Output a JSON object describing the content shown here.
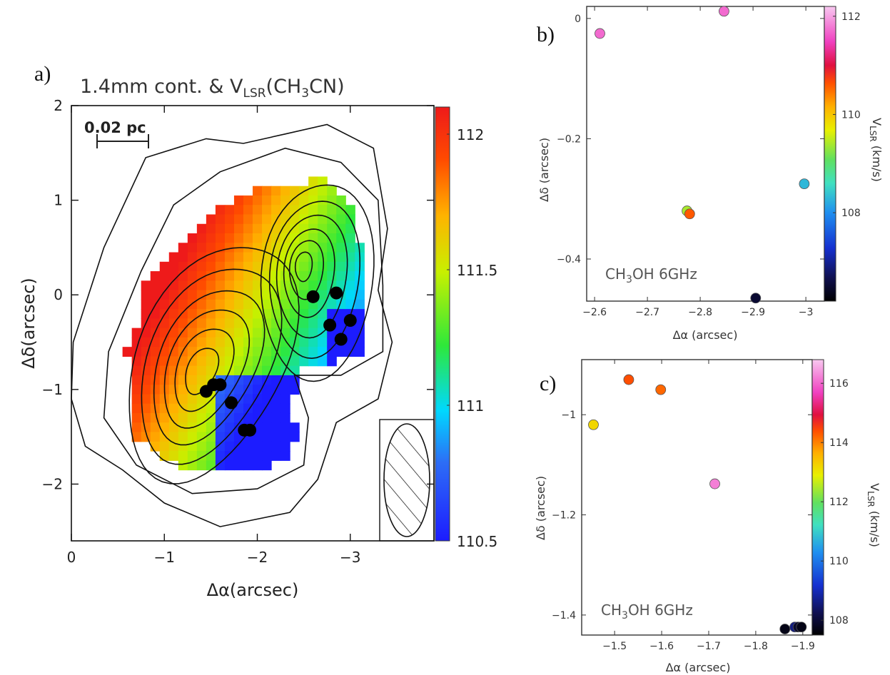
{
  "figure": {
    "panel_labels": [
      "a)",
      "b)",
      "c)"
    ]
  },
  "chart_data": [
    {
      "panel": "a)",
      "type": "heatmap",
      "title_parts": [
        "1.4mm cont. & V",
        "LSR",
        "(CH",
        "3",
        "CN)"
      ],
      "xlabel": "Δα(arcsec)",
      "ylabel": "Δδ(arcsec)",
      "xlim": [
        0,
        -3.9
      ],
      "ylim": [
        -2.6,
        2
      ],
      "xticks": [
        0,
        -1,
        -2,
        -3
      ],
      "xtick_labels": [
        "0",
        "−1",
        "−2",
        "−3"
      ],
      "yticks": [
        2,
        1,
        0,
        -1,
        -2
      ],
      "ytick_labels": [
        "2",
        "1",
        "0",
        "−1",
        "−2"
      ],
      "colorbar": {
        "range": [
          110.5,
          112.1
        ],
        "ticks": [
          112,
          111.5,
          111,
          110.5
        ],
        "tick_labels": [
          "112",
          "111.5",
          "111",
          "110.5"
        ]
      },
      "scale_bar": "0.02 pc",
      "contour_peaks": [
        {
          "x": -1.4,
          "y": -0.8
        },
        {
          "x": -2.5,
          "y": 0.3
        }
      ],
      "points": [
        {
          "x": -2.6,
          "y": -0.02
        },
        {
          "x": -2.85,
          "y": 0.02
        },
        {
          "x": -2.78,
          "y": -0.32
        },
        {
          "x": -3.0,
          "y": -0.27
        },
        {
          "x": -2.9,
          "y": -0.47
        },
        {
          "x": -1.45,
          "y": -1.02
        },
        {
          "x": -1.53,
          "y": -0.95
        },
        {
          "x": -1.6,
          "y": -0.95
        },
        {
          "x": -1.72,
          "y": -1.14
        },
        {
          "x": -1.86,
          "y": -1.43
        },
        {
          "x": -1.92,
          "y": -1.43
        }
      ]
    },
    {
      "panel": "b)",
      "type": "scatter",
      "annotation": "CH3OH 6GHz",
      "xlabel": "Δα (arcsec)",
      "ylabel": "Δδ (arcsec)",
      "xlim": [
        -2.585,
        -3.035
      ],
      "ylim": [
        -0.47,
        0.02
      ],
      "xticks": [
        -2.6,
        -2.7,
        -2.8,
        -2.9,
        -3
      ],
      "xtick_labels": [
        "−2.6",
        "−2.7",
        "−2.8",
        "−2.9",
        "−3"
      ],
      "yticks": [
        0,
        -0.2,
        -0.4
      ],
      "ytick_labels": [
        "0",
        "−0.2",
        "−0.4"
      ],
      "colorbar": {
        "label": "V_LSR (km/s)",
        "range": [
          106.2,
          112.2
        ],
        "ticks": [
          112,
          110,
          108
        ],
        "tick_labels": [
          "112",
          "110",
          "108"
        ]
      },
      "points": [
        {
          "x": -2.61,
          "y": -0.025,
          "v": 111.7
        },
        {
          "x": -2.845,
          "y": 0.012,
          "v": 111.7
        },
        {
          "x": -2.775,
          "y": -0.32,
          "v": 109.4
        },
        {
          "x": -2.78,
          "y": -0.325,
          "v": 110.6
        },
        {
          "x": -2.997,
          "y": -0.275,
          "v": 108.3
        },
        {
          "x": -2.905,
          "y": -0.465,
          "v": 106.5
        }
      ]
    },
    {
      "panel": "c)",
      "type": "scatter",
      "annotation": "CH3OH 6GHz",
      "xlabel": "Δα (arcsec)",
      "ylabel": "Δδ (arcsec)",
      "xlim": [
        -1.43,
        -1.92
      ],
      "ylim": [
        -1.44,
        -0.89
      ],
      "xticks": [
        -1.5,
        -1.6,
        -1.7,
        -1.8,
        -1.9
      ],
      "xtick_labels": [
        "−1.5",
        "−1.6",
        "−1.7",
        "−1.8",
        "−1.9"
      ],
      "yticks": [
        -1,
        -1.2,
        -1.4
      ],
      "ytick_labels": [
        "−1",
        "−1.2",
        "−1.4"
      ],
      "colorbar": {
        "label": "V_LSR (km/s)",
        "range": [
          107.5,
          116.8
        ],
        "ticks": [
          116,
          114,
          112,
          110,
          108
        ],
        "tick_labels": [
          "116",
          "114",
          "112",
          "110",
          "108"
        ]
      },
      "points": [
        {
          "x": -1.455,
          "y": -1.02,
          "v": 113.2
        },
        {
          "x": -1.53,
          "y": -0.93,
          "v": 114.4
        },
        {
          "x": -1.598,
          "y": -0.95,
          "v": 114.2
        },
        {
          "x": -1.713,
          "y": -1.138,
          "v": 116.2
        },
        {
          "x": -1.862,
          "y": -1.428,
          "v": 107.7
        },
        {
          "x": -1.883,
          "y": -1.424,
          "v": 108.6
        },
        {
          "x": -1.89,
          "y": -1.424,
          "v": 107.9
        },
        {
          "x": -1.897,
          "y": -1.424,
          "v": 107.7
        }
      ]
    }
  ]
}
